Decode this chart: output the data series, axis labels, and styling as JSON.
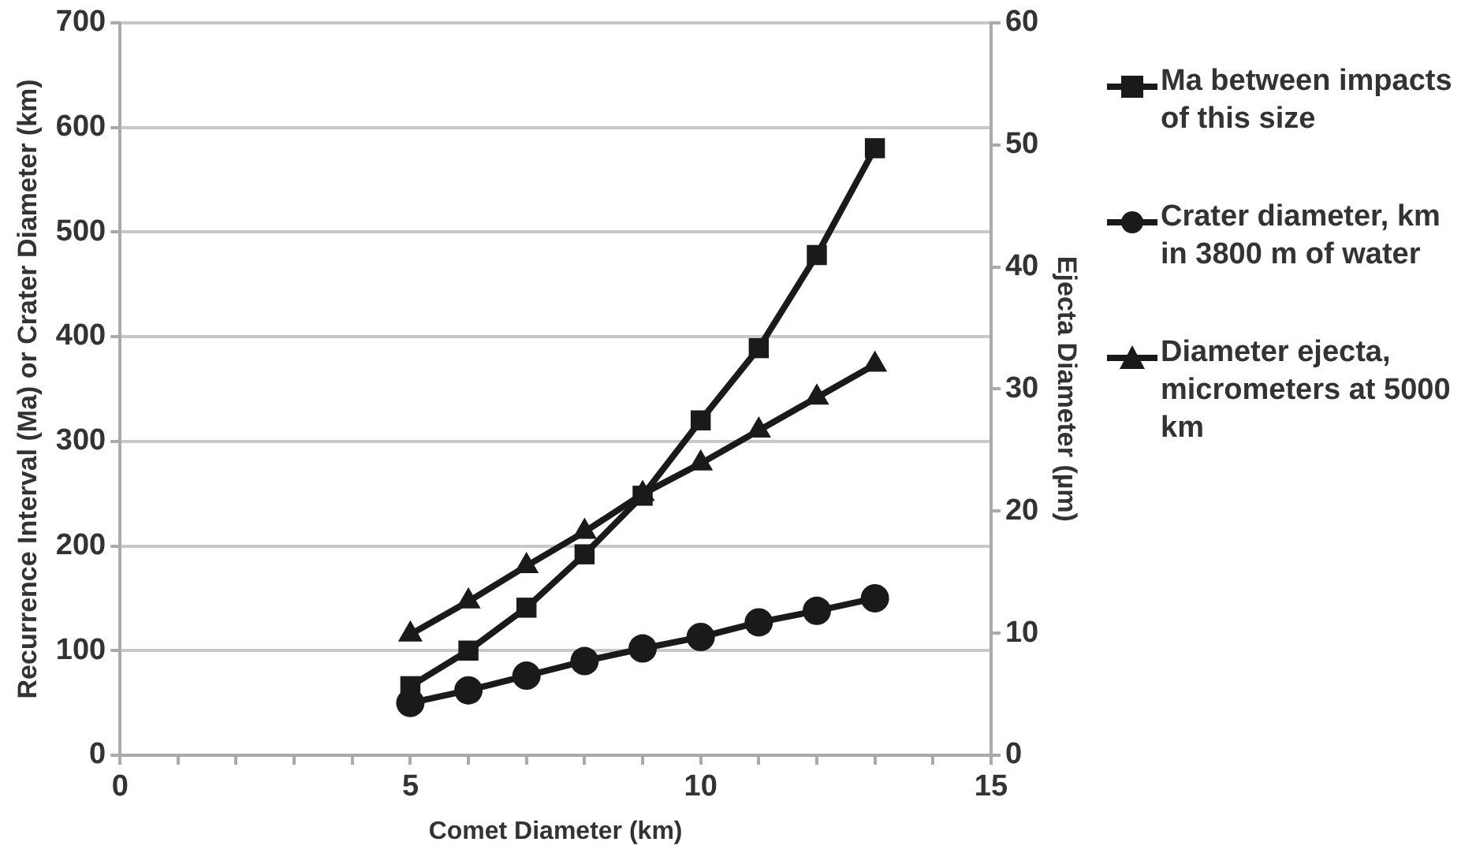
{
  "chart_data": {
    "type": "line",
    "xlabel": "Comet Diameter (km)",
    "ylabel": "Recurrence Interval (Ma) or Crater Diameter (km)",
    "y2label": "Ejecta Diameter (µm)",
    "x": [
      5,
      6,
      7,
      8,
      9,
      10,
      11,
      12,
      13
    ],
    "xlim": [
      0,
      15
    ],
    "xticks": [
      0,
      {
        "value": 1,
        "label": null
      },
      {
        "value": 2,
        "label": null
      },
      {
        "value": 3,
        "label": null
      },
      {
        "value": 4,
        "label": null
      },
      5,
      {
        "value": 6,
        "label": null
      },
      {
        "value": 7,
        "label": null
      },
      {
        "value": 8,
        "label": null
      },
      {
        "value": 9,
        "label": null
      },
      10,
      {
        "value": 11,
        "label": null
      },
      {
        "value": 12,
        "label": null
      },
      {
        "value": 13,
        "label": null
      },
      {
        "value": 14,
        "label": null
      },
      15
    ],
    "ylim": [
      0,
      700
    ],
    "yticks": [
      0,
      100,
      200,
      300,
      400,
      500,
      600,
      700
    ],
    "y2lim": [
      0,
      60
    ],
    "y2ticks": [
      0,
      10,
      20,
      30,
      40,
      50,
      60
    ],
    "grid": "y",
    "legend": "right",
    "series": [
      {
        "name": "Ma between impacts of this size",
        "color": "#1a1a1a",
        "marker": "square",
        "values": [
          66,
          100,
          141,
          192,
          248,
          320,
          389,
          478,
          580
        ]
      },
      {
        "name": "Crater diameter, km in 3800 m of water",
        "color": "#1a1a1a",
        "marker": "circle",
        "values": [
          50,
          62,
          76,
          90,
          102,
          113,
          127,
          138,
          150
        ]
      },
      {
        "name": "Diameter ejecta, micrometers at 5000 km",
        "color": "#1a1a1a",
        "marker": "triangle",
        "axis": "y2",
        "values": [
          9.9,
          12.6,
          15.5,
          18.3,
          21.4,
          23.9,
          26.6,
          29.3,
          32.0
        ]
      }
    ]
  }
}
